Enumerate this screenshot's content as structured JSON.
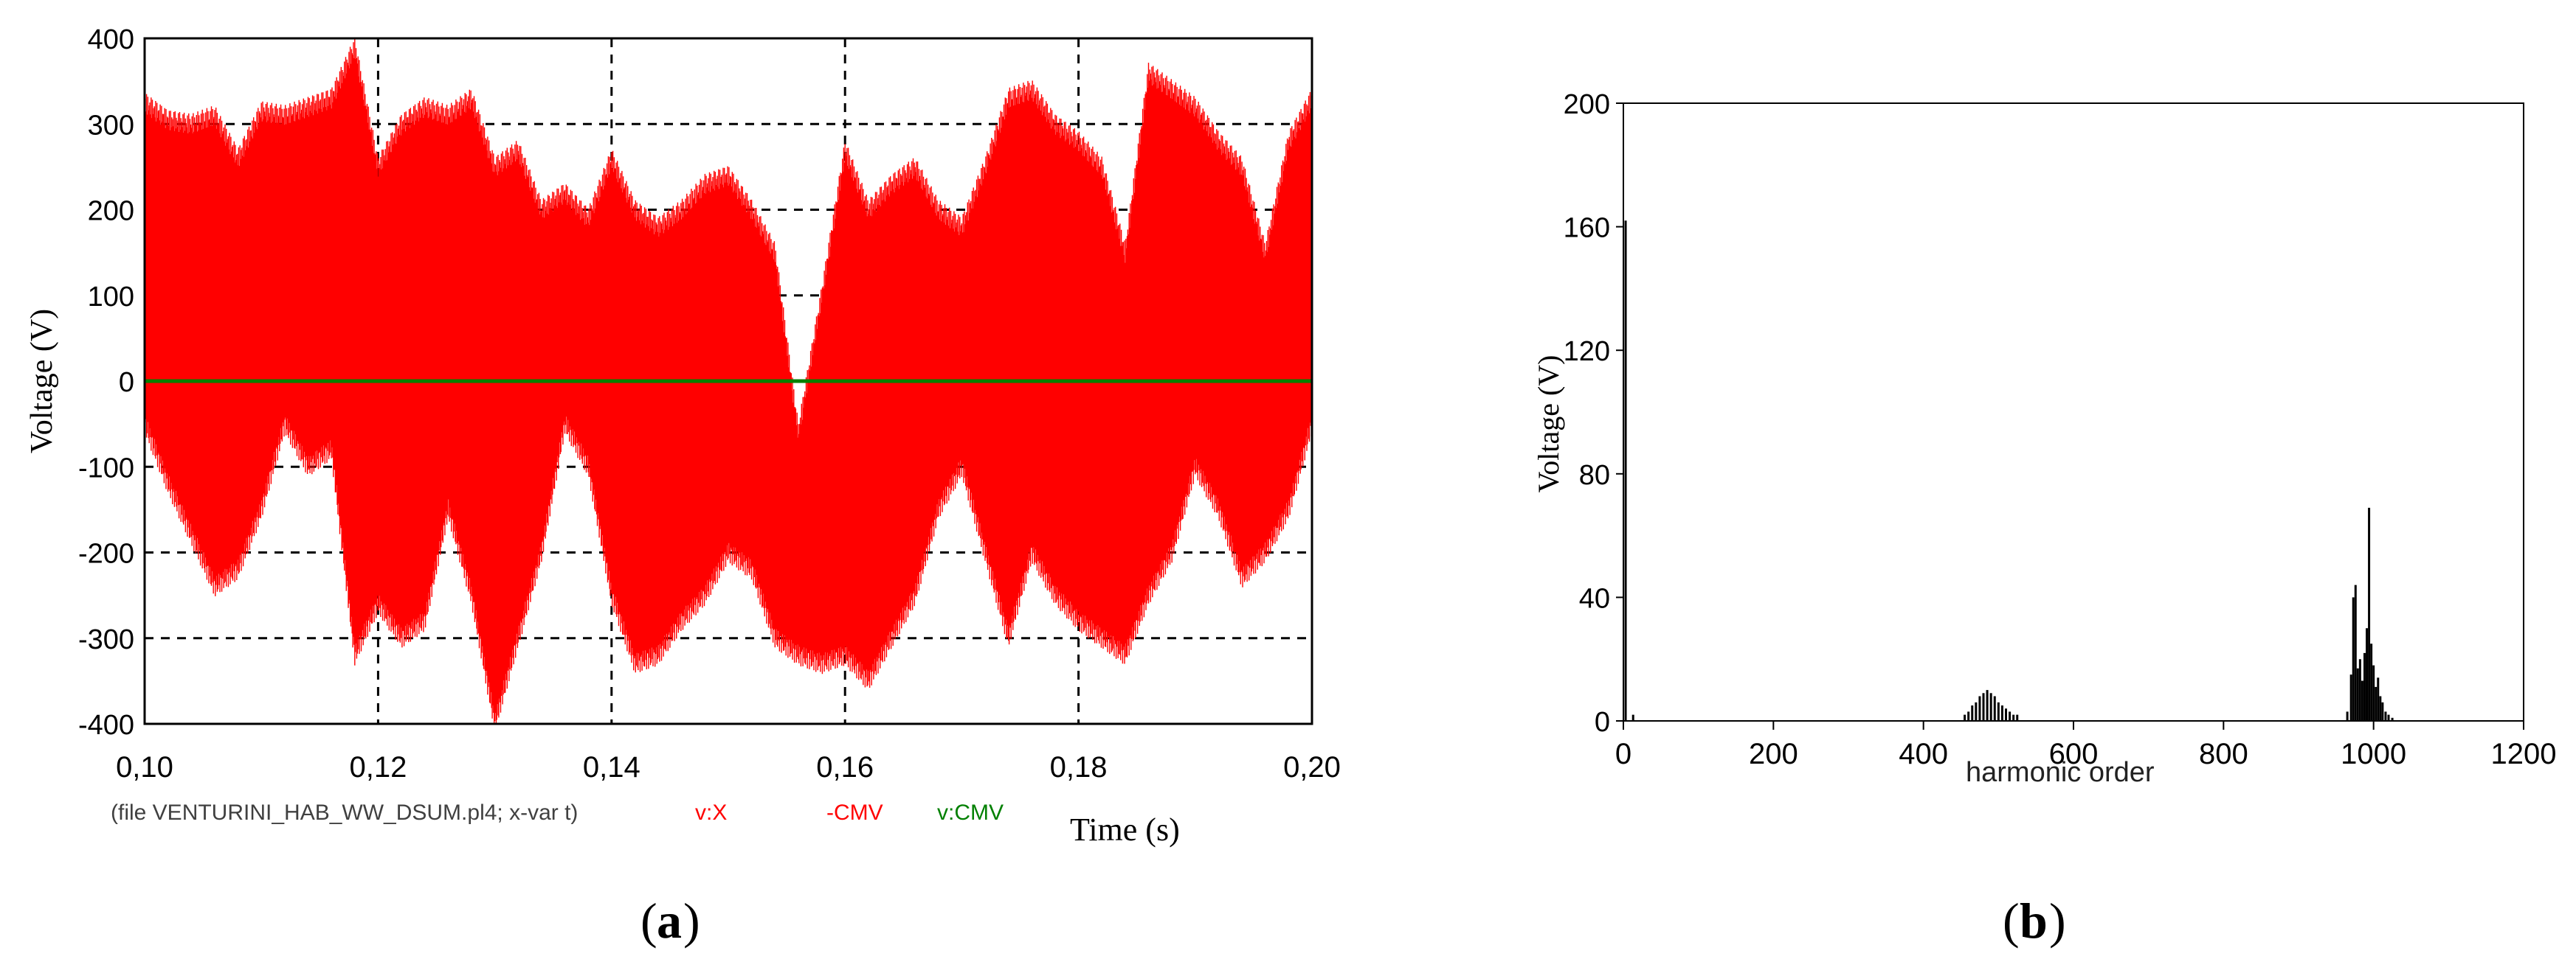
{
  "captions": {
    "a": "a",
    "b": "b"
  },
  "chart_data": [
    {
      "type": "line",
      "ylabel": "Voltage (V)",
      "xlabel": "Time (s)",
      "xlim": [
        0.1,
        0.2
      ],
      "ylim": [
        -400,
        400
      ],
      "x_ticks": [
        "0,10",
        "0,12",
        "0,14",
        "0,16",
        "0,18",
        "0,20"
      ],
      "y_ticks": [
        "400",
        "300",
        "200",
        "100",
        "0",
        "-100",
        "-200",
        "-300",
        "-400"
      ],
      "grid": true,
      "grid_style": "dashed",
      "legend": {
        "file": "(file VENTURINI_HAB_WW_DSUM.pl4; x-var t)",
        "entries": [
          {
            "label": "v:X",
            "color": "#ff0000"
          },
          {
            "label": "-CMV",
            "color": "#ff0000"
          },
          {
            "label": "v:CMV",
            "color": "#008000"
          }
        ]
      },
      "series": [
        {
          "label_ref": 0,
          "color": "#ff0000",
          "style": "dense-switching-envelope",
          "x": [
            0.1,
            0.102,
            0.104,
            0.106,
            0.108,
            0.11,
            0.112,
            0.114,
            0.116,
            0.118,
            0.12,
            0.122,
            0.124,
            0.126,
            0.128,
            0.13,
            0.132,
            0.134,
            0.136,
            0.138,
            0.14,
            0.142,
            0.144,
            0.146,
            0.148,
            0.15,
            0.152,
            0.154,
            0.156,
            0.158,
            0.16,
            0.162,
            0.164,
            0.166,
            0.168,
            0.17,
            0.172,
            0.174,
            0.176,
            0.178,
            0.18,
            0.182,
            0.184,
            0.186,
            0.188,
            0.19,
            0.192,
            0.194,
            0.196,
            0.198,
            0.2
          ],
          "upper": [
            325,
            305,
            300,
            310,
            260,
            315,
            310,
            320,
            330,
            390,
            250,
            300,
            320,
            310,
            330,
            250,
            270,
            200,
            220,
            190,
            260,
            200,
            180,
            200,
            230,
            240,
            200,
            150,
            -60,
            100,
            270,
            200,
            230,
            250,
            200,
            180,
            250,
            330,
            340,
            300,
            280,
            250,
            150,
            360,
            340,
            320,
            280,
            250,
            150,
            280,
            330
          ],
          "lower": [
            -50,
            -120,
            -180,
            -240,
            -220,
            -150,
            -50,
            -100,
            -80,
            -320,
            -260,
            -300,
            -280,
            -150,
            -250,
            -400,
            -300,
            -200,
            -50,
            -100,
            -250,
            -330,
            -320,
            -280,
            -250,
            -200,
            -220,
            -300,
            -320,
            -330,
            -320,
            -350,
            -300,
            -250,
            -150,
            -100,
            -200,
            -300,
            -200,
            -250,
            -280,
            -300,
            -320,
            -250,
            -200,
            -100,
            -150,
            -230,
            -200,
            -150,
            -50
          ]
        },
        {
          "label_ref": 2,
          "color": "#008000",
          "x": [
            0.1,
            0.2
          ],
          "y": [
            0,
            0
          ]
        }
      ]
    },
    {
      "type": "bar",
      "ylabel": "Voltage (V)",
      "xlabel": "harmonic order",
      "xlim": [
        0,
        1200
      ],
      "ylim": [
        0,
        200
      ],
      "x_ticks": [
        "0",
        "200",
        "400",
        "600",
        "800",
        "1000",
        "1200"
      ],
      "y_ticks": [
        "200",
        "160",
        "120",
        "80",
        "40",
        "0"
      ],
      "grid": false,
      "bar_color": "#000000",
      "bars": [
        {
          "x": 3,
          "y": 162
        },
        {
          "x": 13,
          "y": 2
        },
        {
          "x": 455,
          "y": 2
        },
        {
          "x": 460,
          "y": 3
        },
        {
          "x": 465,
          "y": 5
        },
        {
          "x": 470,
          "y": 6
        },
        {
          "x": 475,
          "y": 8
        },
        {
          "x": 480,
          "y": 9
        },
        {
          "x": 485,
          "y": 10
        },
        {
          "x": 490,
          "y": 9
        },
        {
          "x": 495,
          "y": 8
        },
        {
          "x": 500,
          "y": 6
        },
        {
          "x": 505,
          "y": 5
        },
        {
          "x": 510,
          "y": 4
        },
        {
          "x": 515,
          "y": 3
        },
        {
          "x": 520,
          "y": 2
        },
        {
          "x": 525,
          "y": 2
        },
        {
          "x": 965,
          "y": 3
        },
        {
          "x": 970,
          "y": 15
        },
        {
          "x": 973,
          "y": 40
        },
        {
          "x": 976,
          "y": 44
        },
        {
          "x": 979,
          "y": 17
        },
        {
          "x": 982,
          "y": 20
        },
        {
          "x": 985,
          "y": 13
        },
        {
          "x": 988,
          "y": 22
        },
        {
          "x": 991,
          "y": 30
        },
        {
          "x": 994,
          "y": 69
        },
        {
          "x": 997,
          "y": 25
        },
        {
          "x": 1000,
          "y": 18
        },
        {
          "x": 1003,
          "y": 11
        },
        {
          "x": 1006,
          "y": 14
        },
        {
          "x": 1009,
          "y": 8
        },
        {
          "x": 1012,
          "y": 6
        },
        {
          "x": 1016,
          "y": 3
        },
        {
          "x": 1020,
          "y": 2
        },
        {
          "x": 1025,
          "y": 1
        }
      ]
    }
  ]
}
